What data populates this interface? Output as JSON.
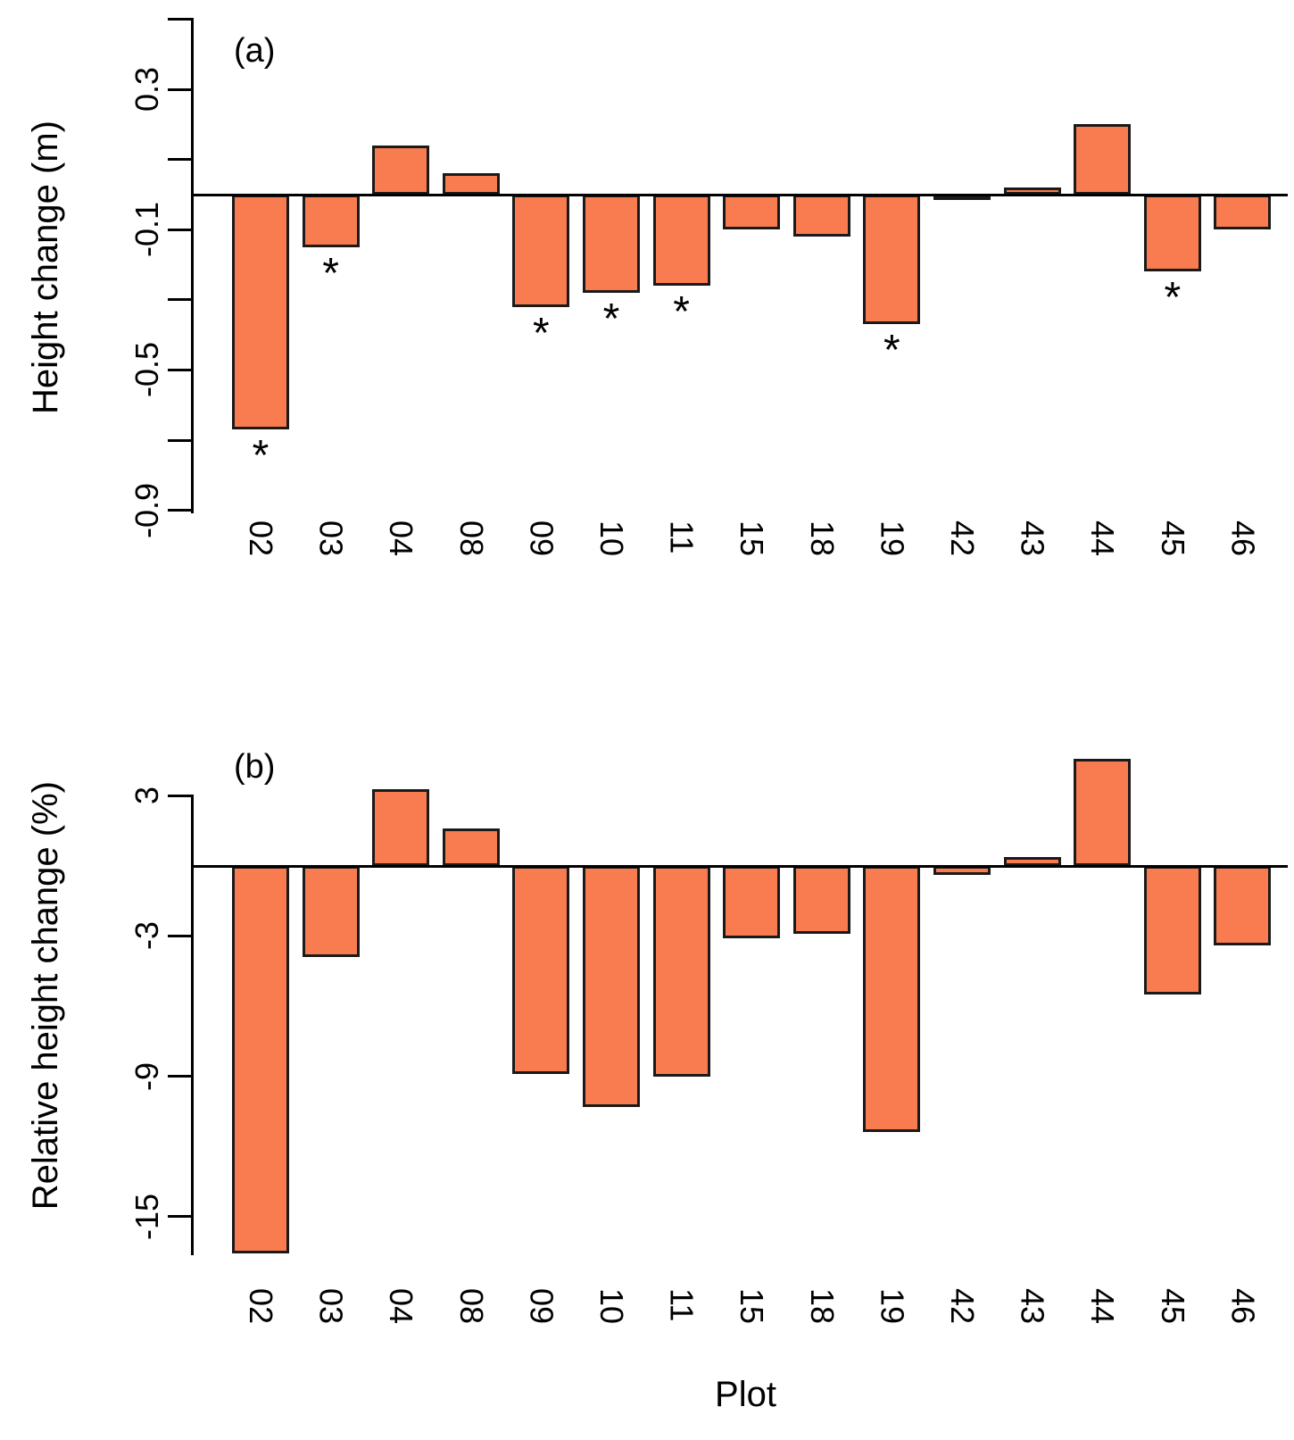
{
  "figure": {
    "background": "#ffffff",
    "bar_fill": "#F87C50",
    "bar_border": "#1a1a1a",
    "xaxis_title": "Plot",
    "significance_marker": "*"
  },
  "chart_data": [
    {
      "type": "bar",
      "panel_label": "(a)",
      "ylabel": "Height change (m)",
      "categories": [
        "02",
        "03",
        "04",
        "08",
        "09",
        "10",
        "11",
        "15",
        "18",
        "19",
        "42",
        "43",
        "44",
        "45",
        "46"
      ],
      "values": [
        -0.67,
        -0.15,
        0.14,
        0.06,
        -0.32,
        -0.28,
        -0.26,
        -0.1,
        -0.12,
        -0.37,
        -0.01,
        0.02,
        0.2,
        -0.22,
        -0.1
      ],
      "significant": [
        true,
        true,
        false,
        false,
        true,
        true,
        true,
        false,
        false,
        true,
        false,
        false,
        false,
        true,
        false
      ],
      "ylim": [
        -0.9,
        0.5
      ],
      "yticks": [
        {
          "value": 0.5,
          "label": ""
        },
        {
          "value": 0.3,
          "label": "0.3"
        },
        {
          "value": 0.1,
          "label": ""
        },
        {
          "value": -0.1,
          "label": "-0.1"
        },
        {
          "value": -0.3,
          "label": ""
        },
        {
          "value": -0.5,
          "label": "-0.5"
        },
        {
          "value": -0.7,
          "label": ""
        },
        {
          "value": -0.9,
          "label": "-0.9"
        }
      ],
      "grid": false,
      "legend": "none",
      "bar_color": "#F87C50"
    },
    {
      "type": "bar",
      "panel_label": "(b)",
      "ylabel": "Relative height change (%)",
      "xlabel": "Plot",
      "categories": [
        "02",
        "03",
        "04",
        "08",
        "09",
        "10",
        "11",
        "15",
        "18",
        "19",
        "42",
        "43",
        "44",
        "45",
        "46"
      ],
      "values": [
        -16.6,
        -3.9,
        3.3,
        1.6,
        -8.9,
        -10.3,
        -9.0,
        -3.1,
        -2.9,
        -11.4,
        -0.4,
        0.4,
        4.6,
        -5.5,
        -3.4
      ],
      "significant": [
        false,
        false,
        false,
        false,
        false,
        false,
        false,
        false,
        false,
        false,
        false,
        false,
        false,
        false,
        false
      ],
      "ylim": [
        -16.6,
        3.1
      ],
      "yticks": [
        {
          "value": 3,
          "label": "3"
        },
        {
          "value": -3,
          "label": "-3"
        },
        {
          "value": -9,
          "label": "-9"
        },
        {
          "value": -15,
          "label": "-15"
        }
      ],
      "grid": false,
      "legend": "none",
      "bar_color": "#F87C50"
    }
  ]
}
